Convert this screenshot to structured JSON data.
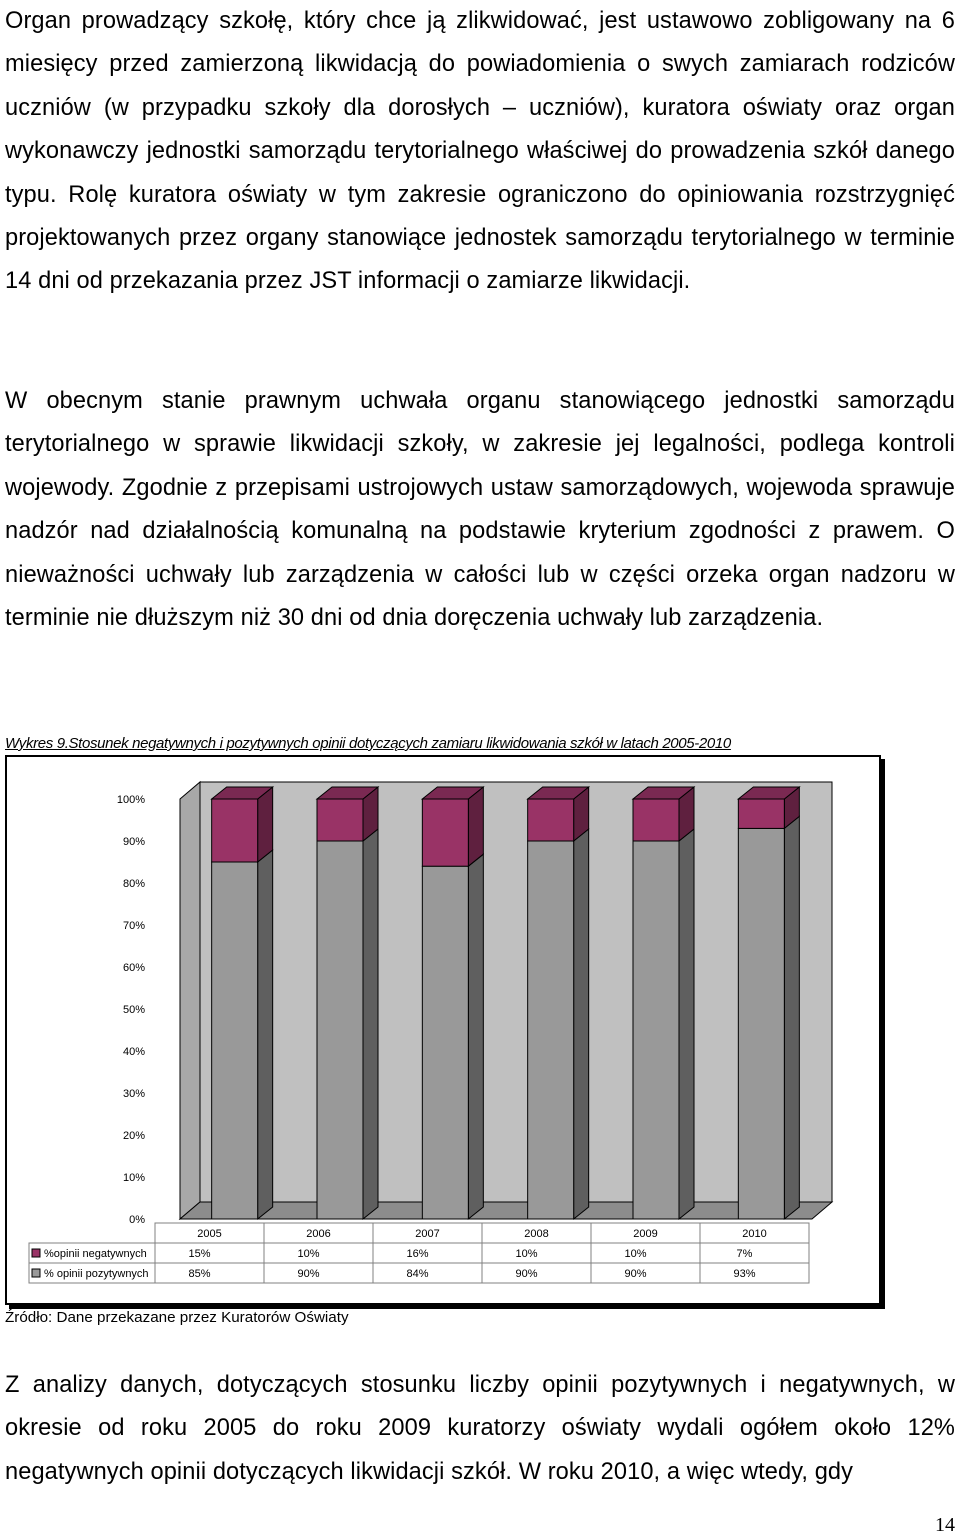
{
  "paragraphs": {
    "p1": "Organ prowadzący szkołę, który chce ją zlikwidować, jest ustawowo zobligowany na 6 miesięcy przed zamierzoną likwidacją do powiadomienia o swych zamiarach rodziców uczniów (w przypadku szkoły dla dorosłych – uczniów), kuratora oświaty oraz organ wykonawczy jednostki samorządu terytorialnego właściwej do prowadzenia szkół danego typu. Rolę kuratora oświaty w tym zakresie ograniczono do opiniowania rozstrzygnięć projektowanych przez organy stanowiące jednostek samorządu terytorialnego w terminie 14 dni od przekazania przez JST informacji o zamiarze likwidacji.",
    "p2": "W obecnym stanie prawnym uchwała organu stanowiącego jednostki samorządu terytorialnego w sprawie likwidacji szkoły, w zakresie jej legalności, podlega kontroli wojewody. Zgodnie z przepisami ustrojowych ustaw samorządowych, wojewoda sprawuje nadzór nad działalnością komunalną na podstawie kryterium zgodności z prawem. O nieważności uchwały lub zarządzenia w całości lub w części orzeka organ nadzoru w terminie nie dłuższym niż 30 dni od dnia doręczenia uchwały lub zarządzenia.",
    "p3": "Z analizy danych, dotyczących stosunku liczby opinii pozytywnych i negatywnych, w okresie od roku 2005 do roku 2009 kuratorzy oświaty wydali ogółem około 12% negatywnych opinii dotyczących likwidacji szkół. W roku 2010, a więc wtedy, gdy"
  },
  "chart_caption": "Wykres 9.Stosunek negatywnych i pozytywnych opinii dotyczących zamiaru likwidowania szkół w latach 2005-2010",
  "source_note": "Źródło: Dane przekazane przez Kuratorów Oświaty",
  "page_number": "14",
  "chart_data": {
    "type": "bar",
    "stacked": true,
    "percent_stacked": true,
    "three_d": true,
    "title": "Wykres 9.Stosunek negatywnych i pozytywnych opinii dotyczących zamiaru likwidowania szkół w latach 2005-2010",
    "categories": [
      "2005",
      "2006",
      "2007",
      "2008",
      "2009",
      "2010"
    ],
    "series": [
      {
        "name": "% opinii pozytywnych",
        "values": [
          85,
          90,
          84,
          90,
          90,
          93
        ],
        "labels": [
          "85%",
          "90%",
          "84%",
          "90%",
          "90%",
          "93%"
        ],
        "color": "#999999"
      },
      {
        "name": "%opinii negatywnych",
        "values": [
          15,
          10,
          16,
          10,
          10,
          7
        ],
        "labels": [
          "15%",
          "10%",
          "16%",
          "10%",
          "10%",
          "7%"
        ],
        "color": "#993366"
      }
    ],
    "table_row_order": [
      "%opinii negatywnych",
      "% opinii pozytywnych"
    ],
    "ylim": [
      0,
      100
    ],
    "yticks": [
      "0%",
      "10%",
      "20%",
      "30%",
      "40%",
      "50%",
      "60%",
      "70%",
      "80%",
      "90%",
      "100%"
    ],
    "ytick_values": [
      0,
      10,
      20,
      30,
      40,
      50,
      60,
      70,
      80,
      90,
      100
    ],
    "data_table": true,
    "legend": "in-data-table",
    "background_color": "#c0c0c0",
    "gridlines": false
  }
}
